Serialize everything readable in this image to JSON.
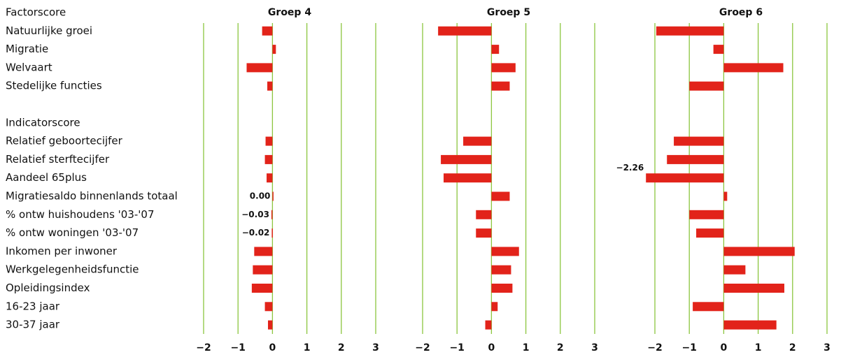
{
  "chart_data": {
    "type": "bar",
    "orientation": "horizontal",
    "sections": [
      {
        "title": "Factorscore",
        "categories": [
          "Natuurlijke groei",
          "Migratie",
          "Welvaart",
          "Stedelijke functies"
        ]
      },
      {
        "title": "Indicatorscore",
        "categories": [
          "Relatief geboortecijfer",
          "Relatief sterftecijfer",
          "Aandeel 65plus",
          "Migratiesaldo binnenlands totaal",
          "% ontw huishoudens '03-'07",
          "% ontw woningen '03-'07",
          "Inkomen per inwoner",
          "Werkgelegenheidsfunctie",
          "Opleidingsindex",
          "16-23 jaar",
          "30-37 jaar"
        ]
      }
    ],
    "series": [
      {
        "name": "Groep 4",
        "color": "#e2231a",
        "values": [
          -0.3,
          0.1,
          -0.75,
          -0.15,
          -0.2,
          -0.22,
          -0.17,
          0.0,
          -0.03,
          -0.02,
          -0.53,
          -0.57,
          -0.6,
          -0.22,
          -0.13
        ],
        "value_labels": [
          null,
          null,
          null,
          null,
          null,
          null,
          null,
          "0.00",
          "−0.03",
          "−0.02",
          null,
          null,
          null,
          null,
          null
        ]
      },
      {
        "name": "Groep 5",
        "color": "#e2231a",
        "values": [
          -1.55,
          0.22,
          0.7,
          0.53,
          -0.82,
          -1.47,
          -1.39,
          0.53,
          -0.45,
          -0.45,
          0.8,
          0.57,
          0.61,
          0.18,
          -0.18
        ]
      },
      {
        "name": "Groep 6",
        "color": "#e2231a",
        "values": [
          -1.96,
          -0.3,
          1.73,
          -1.0,
          -1.45,
          -1.65,
          -2.26,
          0.1,
          -1.0,
          -0.8,
          2.06,
          0.63,
          1.76,
          -0.9,
          1.53
        ],
        "value_labels": [
          null,
          null,
          null,
          null,
          null,
          null,
          "−2.26",
          null,
          null,
          null,
          null,
          null,
          null,
          null,
          null
        ]
      }
    ],
    "xlim": [
      -2,
      3
    ],
    "xticks": [
      {
        "value": -2,
        "label": "−2"
      },
      {
        "value": -1,
        "label": "−1"
      },
      0,
      1,
      2,
      3
    ],
    "grid": true,
    "grid_color": "#8cc63f"
  }
}
